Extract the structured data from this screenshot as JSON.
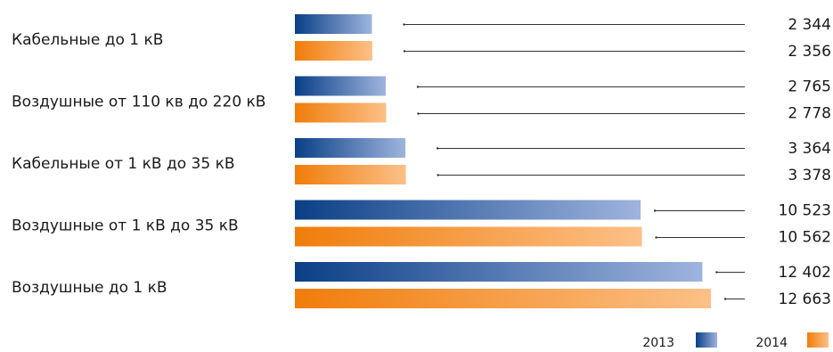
{
  "chart_data": {
    "type": "bar",
    "orientation": "horizontal",
    "categories": [
      "Кабельные до 1 кВ",
      "Воздушные от 110 кв до 220 кВ",
      "Кабельные от 1 кВ до 35 кВ",
      "Воздушные от 1 кВ до 35 кВ",
      "Воздушные до 1 кВ"
    ],
    "series": [
      {
        "name": "2013",
        "values": [
          2344,
          2765,
          3364,
          10523,
          12402
        ],
        "value_labels": [
          "2 344",
          "2 765",
          "3 364",
          "10 523",
          "12 402"
        ],
        "color_start": "#0a3f86",
        "color_end": "#9fb4de"
      },
      {
        "name": "2014",
        "values": [
          2356,
          2778,
          3378,
          10562,
          12663
        ],
        "value_labels": [
          "2 356",
          "2 778",
          "3 378",
          "10 562",
          "12 663"
        ],
        "color_start": "#f07d0a",
        "color_end": "#fcc088"
      }
    ],
    "xlim": [
      0,
      13000
    ],
    "grid": false,
    "legend_position": "bottom-right"
  }
}
